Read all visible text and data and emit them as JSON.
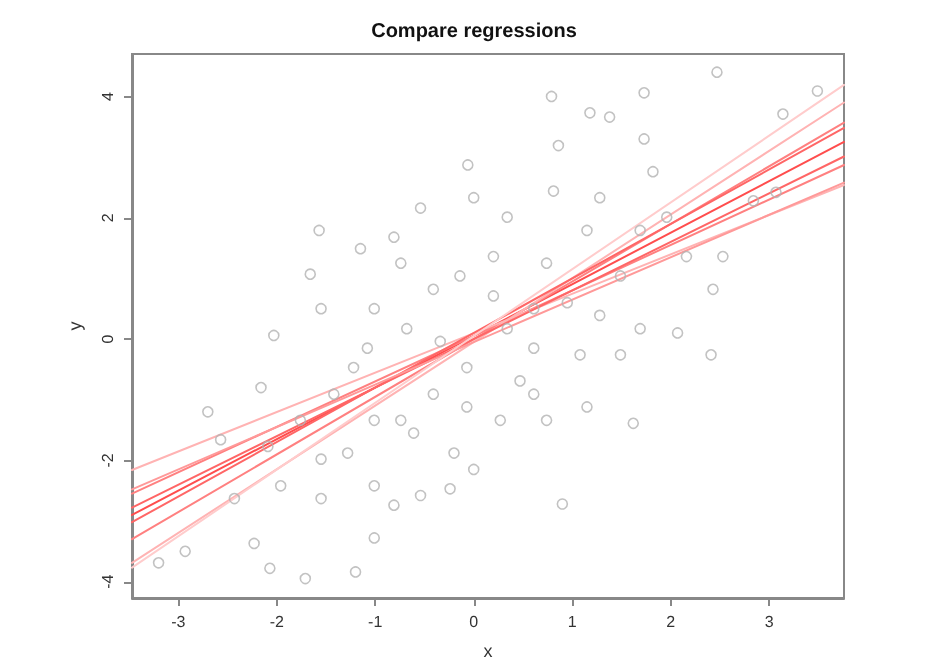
{
  "chart_data": {
    "type": "scatter",
    "title": "Compare regressions",
    "xlabel": "x",
    "ylabel": "y",
    "xlim": [
      -3.47,
      3.76
    ],
    "ylim": [
      -4.27,
      4.7
    ],
    "xticks": [
      -3,
      -2,
      -1,
      0,
      1,
      2,
      3
    ],
    "yticks": [
      -4,
      -2,
      0,
      2,
      4
    ],
    "grid": false,
    "marker": "circle",
    "series": [
      {
        "type": "line",
        "marker": "none",
        "color": "#ff4d4d",
        "x": [
          -3.47,
          3.76
        ],
        "values": [
          -2.9,
          3.25
        ]
      },
      {
        "type": "line",
        "marker": "none",
        "color": "#ff8080",
        "x": [
          -3.47,
          3.76
        ],
        "values": [
          -2.55,
          2.87
        ]
      },
      {
        "type": "line",
        "marker": "none",
        "color": "#ff8080",
        "x": [
          -3.47,
          3.76
        ],
        "values": [
          -3.3,
          3.57
        ]
      },
      {
        "type": "line",
        "marker": "none",
        "color": "#ffb3b3",
        "x": [
          -3.47,
          3.76
        ],
        "values": [
          -2.16,
          2.54
        ]
      },
      {
        "type": "line",
        "marker": "none",
        "color": "#ffb3b3",
        "x": [
          -3.47,
          3.76
        ],
        "values": [
          -3.69,
          3.9
        ]
      },
      {
        "type": "line",
        "marker": "none",
        "color": "#ff6666",
        "x": [
          -3.47,
          3.76
        ],
        "values": [
          -2.78,
          3.01
        ]
      },
      {
        "type": "line",
        "marker": "none",
        "color": "#ff6666",
        "x": [
          -3.47,
          3.76
        ],
        "values": [
          -3.02,
          3.48
        ]
      },
      {
        "type": "line",
        "marker": "none",
        "color": "#ff9999",
        "x": [
          -3.47,
          3.76
        ],
        "values": [
          -2.48,
          2.58
        ]
      },
      {
        "type": "line",
        "marker": "none",
        "color": "#ffcccc",
        "x": [
          -3.47,
          3.76
        ],
        "values": [
          -3.77,
          4.19
        ]
      },
      {
        "color": "#b3b3b3",
        "x": [
          2.47,
          3.49,
          0.79,
          1.73,
          1.18,
          1.38,
          3.14,
          1.73,
          0.86,
          -0.06,
          -0.54,
          -1.57,
          -1.66,
          -1.15,
          -0.81,
          0,
          0.34,
          0.81,
          1.28,
          1.96,
          2.84,
          3.07,
          2.53,
          2.43,
          2.07,
          2.41,
          1.62,
          1.15,
          0.74,
          0.47,
          -0.07,
          -0.41,
          -0.74,
          0,
          -0.24,
          -0.54,
          0.9,
          -1.01,
          -1.2,
          -1.71,
          -2.07,
          -2.23,
          -2.93,
          -3.2,
          -2.7,
          -2.03,
          -1.55,
          -1.08,
          -0.68,
          -0.41,
          -0.14,
          0.2,
          0.61,
          0.95,
          1.49,
          1.69,
          1.49,
          1.08,
          0.34,
          -1.42,
          -1.76,
          -2.09,
          -1.55,
          -1.28,
          -1.01,
          -0.61,
          -0.2,
          0.27,
          0.61,
          -1.96,
          -2.43,
          -1.55,
          -0.81,
          -1.01,
          1.15,
          1.82,
          2.16,
          -0.74,
          -1.01,
          -1.22,
          0.2,
          0.74,
          -0.07,
          -2.16,
          -2.57,
          0.61,
          -0.34,
          1.28,
          1.69
        ],
        "values": [
          4.4,
          4.09,
          4.0,
          4.06,
          3.73,
          3.66,
          3.71,
          3.3,
          3.19,
          2.87,
          2.16,
          1.79,
          1.07,
          1.49,
          1.68,
          2.33,
          2.01,
          2.44,
          2.33,
          2.01,
          2.28,
          2.42,
          1.36,
          0.82,
          0.1,
          -0.26,
          -1.39,
          -1.12,
          -1.34,
          -0.69,
          -0.47,
          -0.91,
          -1.34,
          -2.15,
          -2.47,
          -2.58,
          -2.72,
          -3.28,
          -3.84,
          -3.95,
          -3.78,
          -3.37,
          -3.5,
          -3.69,
          -1.2,
          0.06,
          0.5,
          -0.15,
          0.17,
          0.82,
          1.04,
          1.36,
          0.5,
          0.6,
          1.04,
          0.17,
          -0.26,
          -0.26,
          0.17,
          -0.91,
          -1.34,
          -1.77,
          -1.98,
          -1.88,
          -1.34,
          -1.55,
          -1.88,
          -1.34,
          -0.91,
          -2.42,
          -2.63,
          -2.63,
          -2.74,
          -2.42,
          1.79,
          2.76,
          1.36,
          1.25,
          0.5,
          -0.47,
          0.71,
          1.25,
          -1.12,
          -0.8,
          -1.66,
          -0.15,
          -0.04,
          0.39,
          1.79
        ]
      }
    ]
  }
}
